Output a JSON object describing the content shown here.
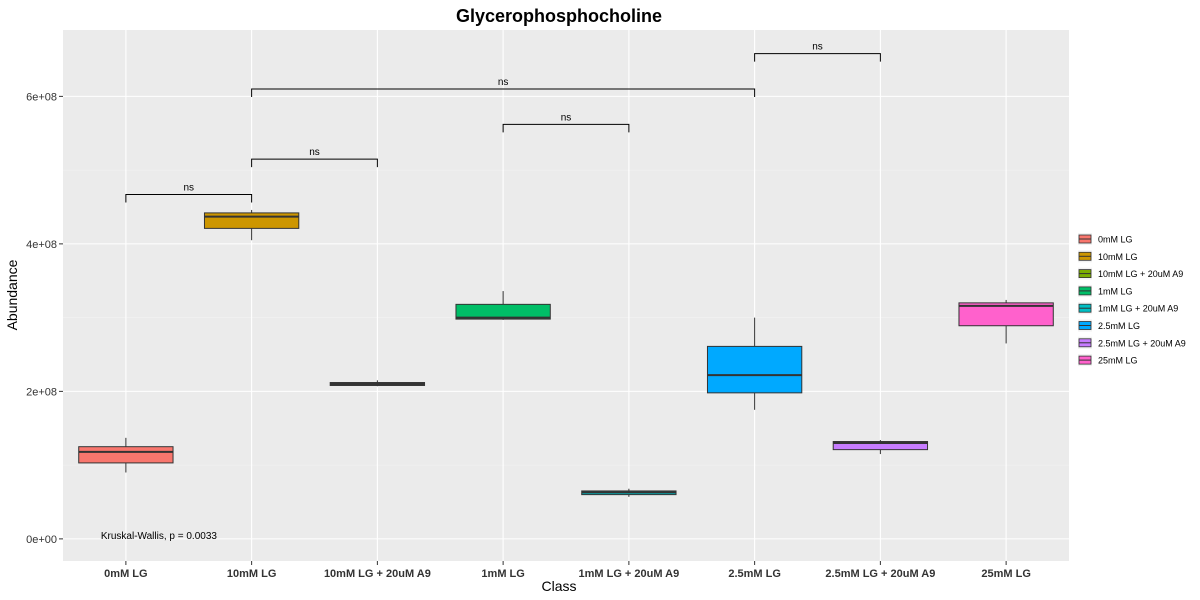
{
  "chart_data": {
    "type": "boxplot",
    "title": "Glycerophosphocholine",
    "xlabel": "Class",
    "ylabel": "Abundance",
    "ylim": [
      -30000000,
      690000000
    ],
    "y_ticks": [
      {
        "value": 0,
        "label": "0e+00"
      },
      {
        "value": 200000000,
        "label": "2e+08"
      },
      {
        "value": 400000000,
        "label": "4e+08"
      },
      {
        "value": 600000000,
        "label": "6e+08"
      }
    ],
    "grid": true,
    "legend_position": "right",
    "categories": [
      "0mM LG",
      "10mM LG",
      "10mM LG + 20uM A9",
      "1mM LG",
      "1mM LG + 20uM A9",
      "2.5mM LG",
      "2.5mM LG + 20uM A9",
      "25mM LG"
    ],
    "boxes": [
      {
        "name": "0mM LG",
        "color": "#F8766D",
        "min": 90000000,
        "q1": 103000000,
        "median": 118000000,
        "q3": 125000000,
        "max": 137000000
      },
      {
        "name": "10mM LG",
        "color": "#CD9600",
        "min": 405000000,
        "q1": 421000000,
        "median": 437000000,
        "q3": 442000000,
        "max": 446000000
      },
      {
        "name": "10mM LG + 20uM A9",
        "color": "#7CAE00",
        "min": 207000000,
        "q1": 208000000,
        "median": 210000000,
        "q3": 212000000,
        "max": 215000000
      },
      {
        "name": "1mM LG",
        "color": "#00BE67",
        "min": 297000000,
        "q1": 298000000,
        "median": 300000000,
        "q3": 318000000,
        "max": 336000000
      },
      {
        "name": "1mM LG + 20uM A9",
        "color": "#00BFC4",
        "min": 57000000,
        "q1": 60000000,
        "median": 63000000,
        "q3": 65000000,
        "max": 68000000
      },
      {
        "name": "2.5mM LG",
        "color": "#00A9FF",
        "min": 175000000,
        "q1": 198000000,
        "median": 222000000,
        "q3": 261000000,
        "max": 300000000
      },
      {
        "name": "2.5mM LG + 20uM A9",
        "color": "#C77CFF",
        "min": 115000000,
        "q1": 121000000,
        "median": 130000000,
        "q3": 132000000,
        "max": 134000000
      },
      {
        "name": "25mM LG",
        "color": "#FF61CC",
        "min": 265000000,
        "q1": 289000000,
        "median": 316000000,
        "q3": 320000000,
        "max": 324000000
      }
    ],
    "comparisons": [
      {
        "from": 0,
        "to": 1,
        "y": 467000000,
        "label": "ns"
      },
      {
        "from": 1,
        "to": 2,
        "y": 515000000,
        "label": "ns"
      },
      {
        "from": 3,
        "to": 4,
        "y": 562000000,
        "label": "ns"
      },
      {
        "from": 1,
        "to": 5,
        "y": 610000000,
        "label": "ns"
      },
      {
        "from": 5,
        "to": 6,
        "y": 658000000,
        "label": "ns"
      }
    ],
    "annotation": {
      "text": "Kruskal-Wallis, p = 0.0033",
      "x_category": 0,
      "y": 4000000
    },
    "legend_title": ""
  }
}
